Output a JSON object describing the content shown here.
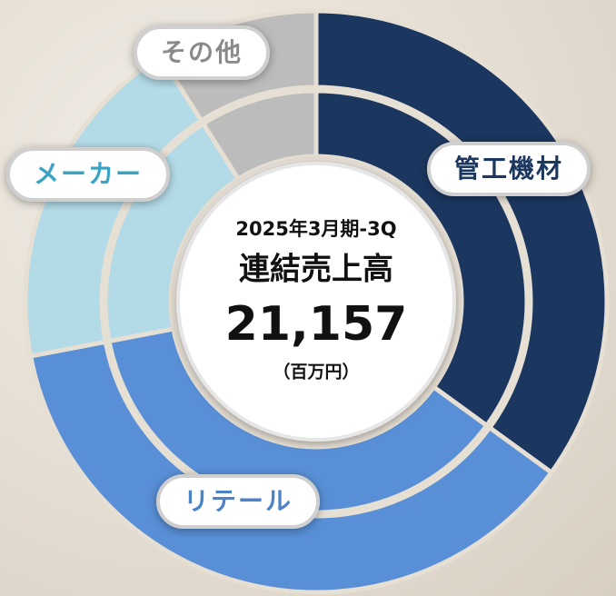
{
  "chart_data": {
    "type": "donut",
    "title_lines": [
      "2025年3月期-3Q",
      "連結売上高"
    ],
    "total_label": "21,157",
    "unit": "（百万円）",
    "categories": [
      "管工機材",
      "リテール",
      "メーカー",
      "その他"
    ],
    "values": [
      35,
      37,
      19,
      9
    ],
    "colors": [
      "#1b365f",
      "#588fd6",
      "#b3dbe7",
      "#bcbcbc"
    ],
    "label_colors": [
      "#1b365f",
      "#4b82c8",
      "#3aa3c4",
      "#8a8a8a"
    ]
  }
}
